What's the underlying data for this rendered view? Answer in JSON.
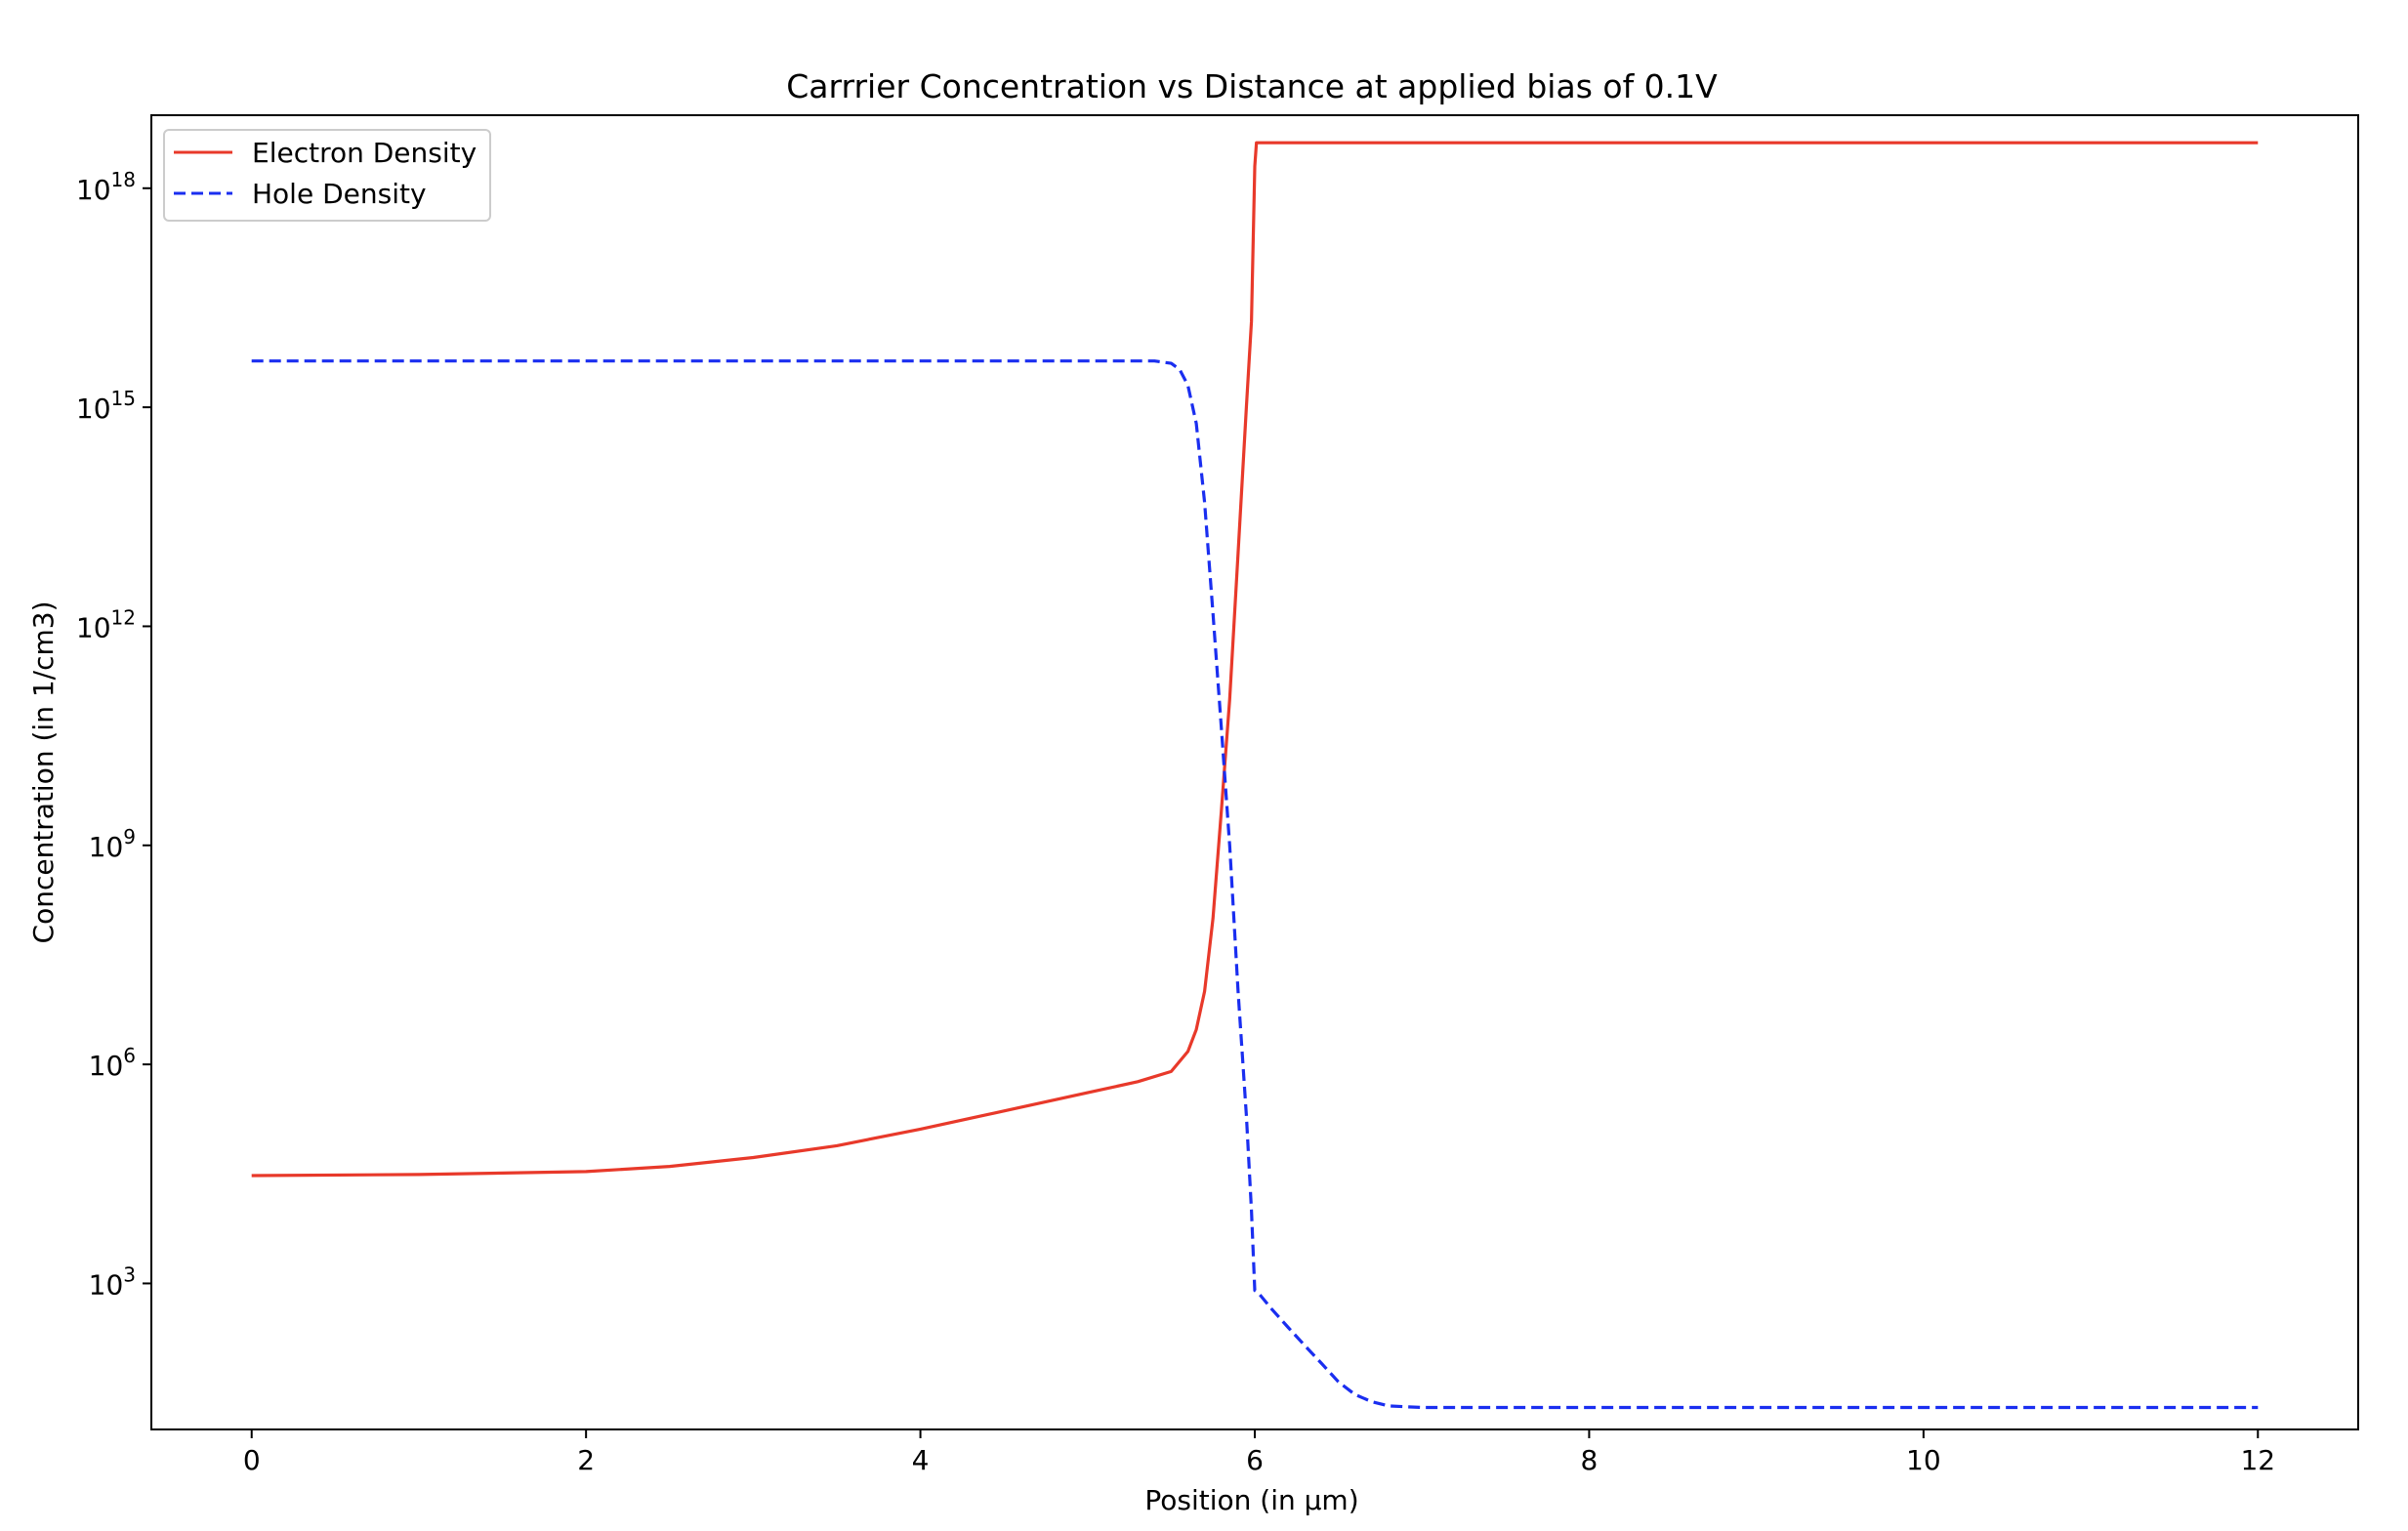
{
  "chart_data": {
    "type": "line",
    "title": "Carrrier Concentration vs Distance at applied bias of 0.1V",
    "xlabel": "Position (in µm)",
    "ylabel": "Concentration (in 1/cm3)",
    "xlim": [
      -0.6,
      12.6
    ],
    "ylim": [
      10,
      1e+19
    ],
    "yscale": "log",
    "grid": false,
    "legend_position": "top-left",
    "x_ticks": [
      0,
      2,
      4,
      6,
      8,
      10,
      12
    ],
    "x_tick_labels": [
      "0",
      "2",
      "4",
      "6",
      "8",
      "10",
      "12"
    ],
    "y_ticks": [
      {
        "base": "10",
        "exp": "3",
        "value": 1000
      },
      {
        "base": "10",
        "exp": "6",
        "value": 1000000
      },
      {
        "base": "10",
        "exp": "9",
        "value": 1000000000
      },
      {
        "base": "10",
        "exp": "12",
        "value": 1000000000000
      },
      {
        "base": "10",
        "exp": "15",
        "value": 1000000000000000
      },
      {
        "base": "10",
        "exp": "18",
        "value": 1000000000000000000
      }
    ],
    "series": [
      {
        "name": "Electron Density",
        "color": "#e8392a",
        "line_style": "solid",
        "x": [
          0,
          1,
          2,
          2.5,
          3,
          3.5,
          4,
          4.5,
          5,
          5.3,
          5.5,
          5.6,
          5.65,
          5.7,
          5.75,
          5.8,
          5.85,
          5.9,
          5.95,
          5.98,
          6.0,
          6.01,
          7,
          8,
          9,
          10,
          11,
          12
        ],
        "y": [
          30000,
          31000,
          34000,
          40000,
          53000,
          77000,
          130000,
          230000,
          410000,
          580000,
          800000,
          1500000,
          3000000,
          10000000,
          100000000,
          3000000000,
          100000000000,
          10000000000000,
          1000000000000000,
          15000000000000000,
          2000000000000000000,
          4200000000000000000,
          4200000000000000000,
          4200000000000000000,
          4200000000000000000,
          4200000000000000000,
          4200000000000000000,
          4200000000000000000
        ]
      },
      {
        "name": "Hole Density",
        "color": "#1a2ef0",
        "line_style": "dashed",
        "x": [
          0,
          2,
          4,
          5,
          5.4,
          5.5,
          5.55,
          5.6,
          5.65,
          5.7,
          5.75,
          5.8,
          5.85,
          5.9,
          5.95,
          5.98,
          6.0,
          6.02,
          6.1,
          6.2,
          6.3,
          6.4,
          6.5,
          6.6,
          6.7,
          6.8,
          7.0,
          8,
          9,
          10,
          11,
          12
        ],
        "y": [
          4300000000000000,
          4300000000000000,
          4300000000000000,
          4300000000000000,
          4300000000000000,
          4000000000000000,
          3300000000000000,
          2000000000000000,
          600000000000000,
          50000000000000,
          1500000000000,
          40000000000,
          1000000000,
          10000000,
          200000,
          10000,
          800,
          750,
          450,
          250,
          140,
          80,
          45,
          30,
          24,
          21,
          20,
          20,
          20,
          20,
          20,
          20
        ]
      }
    ]
  }
}
